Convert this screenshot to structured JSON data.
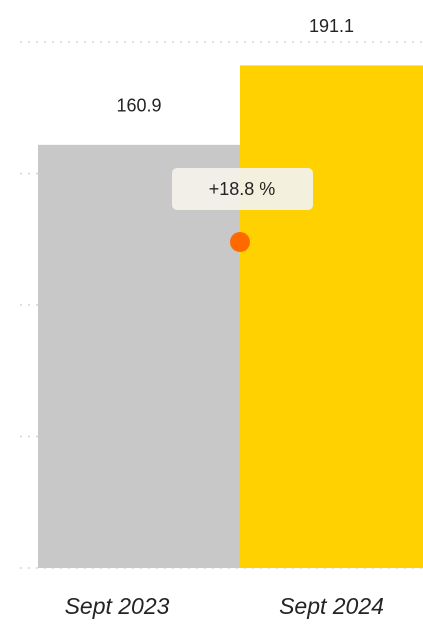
{
  "chart_data": {
    "type": "bar",
    "categories": [
      "Sept 2023",
      "Sept 2024"
    ],
    "values": [
      160.9,
      191.1
    ],
    "colors": [
      "#c8c8c8",
      "#ffd100"
    ],
    "ylim": [
      0,
      200
    ],
    "yticks": [
      0,
      50,
      100,
      150,
      200
    ],
    "grid": true,
    "annotation": "+18.8 %"
  }
}
